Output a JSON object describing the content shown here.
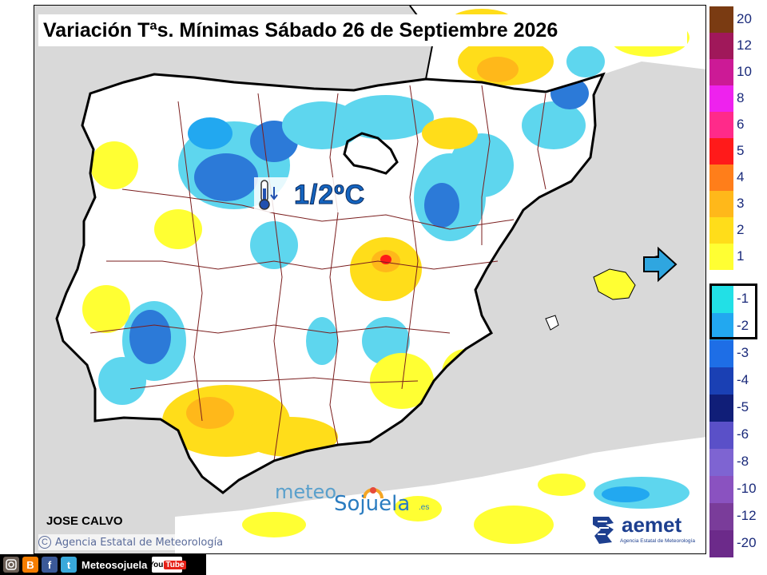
{
  "title": "Variación Tªs. Mínimas Sábado 26 de Septiembre 2026",
  "anomaly": {
    "value": "1/2ºC",
    "icon": "thermometer-down-icon"
  },
  "pointer": {
    "icon": "arrow-right-icon",
    "color": "#2fa6e0"
  },
  "watermark": {
    "meteo": "meteo",
    "sojuela": "Sojuela",
    "domain": ".es"
  },
  "author": "JOSE CALVO",
  "credit": {
    "symbol": "C",
    "text": "Agencia Estatal de Meteorología"
  },
  "aemet": {
    "word": "aemet",
    "subtitle": "Agencia Estatal de Meteorología"
  },
  "social": {
    "blogger": "B",
    "facebook": "f",
    "twitter": "t",
    "handle": "Meteosojuela",
    "youtube_a": "You",
    "youtube_b": "Tube"
  },
  "legend": {
    "positive": [
      {
        "label": "20",
        "color": "#7a3b12"
      },
      {
        "label": "12",
        "color": "#a0185a"
      },
      {
        "label": "10",
        "color": "#cc1a96"
      },
      {
        "label": "8",
        "color": "#ee22ee"
      },
      {
        "label": "6",
        "color": "#ff2a8a"
      },
      {
        "label": "5",
        "color": "#ff1a1a"
      },
      {
        "label": "4",
        "color": "#ff7e1a"
      },
      {
        "label": "3",
        "color": "#ffb81a"
      },
      {
        "label": "2",
        "color": "#ffdd1a"
      },
      {
        "label": "1",
        "color": "#ffff33"
      }
    ],
    "negative": [
      {
        "label": "-1",
        "color": "#22e0e6"
      },
      {
        "label": "-2",
        "color": "#22a8f0"
      },
      {
        "label": "-3",
        "color": "#1e6ee6"
      },
      {
        "label": "-4",
        "color": "#1a40b4"
      },
      {
        "label": "-5",
        "color": "#101e78"
      },
      {
        "label": "-6",
        "color": "#5a50c8"
      },
      {
        "label": "-8",
        "color": "#7e64d2"
      },
      {
        "label": "-10",
        "color": "#8a52c0"
      },
      {
        "label": "-12",
        "color": "#7a3c9a"
      },
      {
        "label": "-20",
        "color": "#6c2a8a"
      }
    ]
  }
}
